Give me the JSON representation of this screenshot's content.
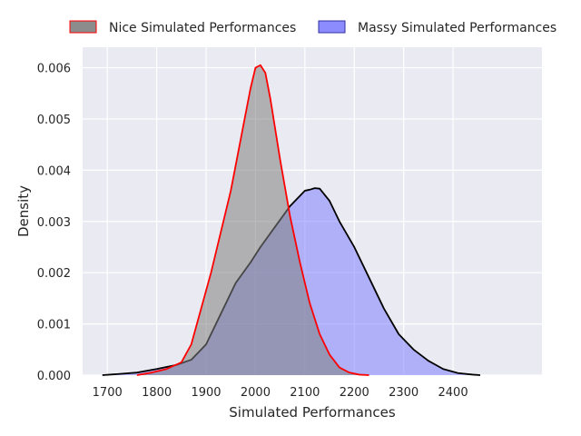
{
  "chart_data": {
    "type": "area",
    "xlabel": "Simulated Performances",
    "ylabel": "Density",
    "xlim": [
      1650,
      2580
    ],
    "ylim": [
      0,
      0.0064
    ],
    "x_ticks": [
      1700,
      1800,
      1900,
      2000,
      2100,
      2200,
      2300,
      2400
    ],
    "y_ticks": [
      0.0,
      0.001,
      0.002,
      0.003,
      0.004,
      0.005,
      0.006
    ],
    "y_tick_labels": [
      "0.000",
      "0.001",
      "0.002",
      "0.003",
      "0.004",
      "0.005",
      "0.006"
    ],
    "grid": true,
    "legend_position": "top",
    "series": [
      {
        "name": "Massy Simulated Performances",
        "fill": "#8080ff",
        "line": "#000000",
        "x": [
          1690,
          1720,
          1760,
          1800,
          1840,
          1870,
          1900,
          1930,
          1960,
          1990,
          2010,
          2040,
          2070,
          2090,
          2100,
          2110,
          2120,
          2130,
          2150,
          2170,
          2200,
          2230,
          2260,
          2290,
          2320,
          2350,
          2380,
          2410,
          2440,
          2455
        ],
        "y": [
          0.0,
          2e-05,
          5e-05,
          0.00012,
          0.0002,
          0.0003,
          0.0006,
          0.0012,
          0.0018,
          0.0022,
          0.0025,
          0.0029,
          0.0033,
          0.0035,
          0.0036,
          0.00362,
          0.00365,
          0.00364,
          0.0034,
          0.003,
          0.0025,
          0.0019,
          0.0013,
          0.0008,
          0.0005,
          0.00028,
          0.00012,
          4e-05,
          1e-05,
          0.0
        ]
      },
      {
        "name": "Nice Simulated Performances",
        "fill": "#808080",
        "line": "#ff0000",
        "x": [
          1760,
          1790,
          1820,
          1850,
          1870,
          1890,
          1910,
          1930,
          1950,
          1970,
          1990,
          2000,
          2010,
          2020,
          2030,
          2050,
          2070,
          2090,
          2110,
          2130,
          2150,
          2170,
          2190,
          2210,
          2230
        ],
        "y": [
          0.0,
          5e-05,
          0.00012,
          0.00025,
          0.0006,
          0.0013,
          0.002,
          0.0028,
          0.0036,
          0.0046,
          0.0056,
          0.006,
          0.00605,
          0.0059,
          0.0054,
          0.0042,
          0.0031,
          0.0022,
          0.0014,
          0.0008,
          0.0004,
          0.00015,
          5e-05,
          1e-05,
          0.0
        ]
      }
    ]
  }
}
